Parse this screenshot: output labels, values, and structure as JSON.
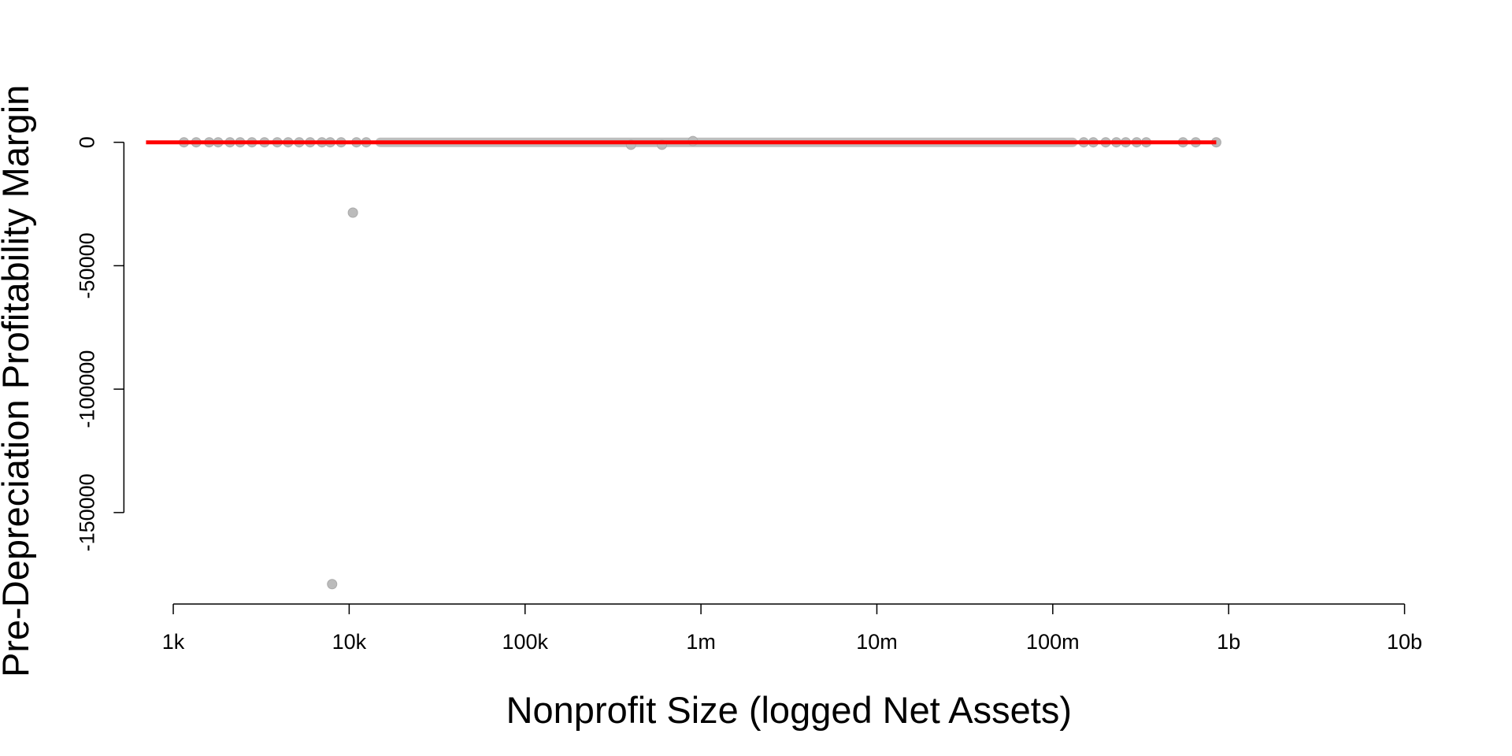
{
  "chart_data": {
    "type": "scatter",
    "title": "",
    "xlabel": "Nonprofit Size (logged Net Assets)",
    "ylabel": "Pre-Depreciation Profitability Margin",
    "x_scale": "log10",
    "x_ticks": [
      {
        "value": 1000,
        "label": "1k"
      },
      {
        "value": 10000,
        "label": "10k"
      },
      {
        "value": 100000,
        "label": "100k"
      },
      {
        "value": 1000000,
        "label": "1m"
      },
      {
        "value": 10000000,
        "label": "10m"
      },
      {
        "value": 100000000,
        "label": "100m"
      },
      {
        "value": 1000000000,
        "label": "1b"
      },
      {
        "value": 10000000000,
        "label": "10b"
      }
    ],
    "y_ticks": [
      {
        "value": 0,
        "label": "0"
      },
      {
        "value": -50000,
        "label": "-50000"
      },
      {
        "value": -100000,
        "label": "-100000"
      },
      {
        "value": -150000,
        "label": "-150000"
      }
    ],
    "points_color": "#bbbbbb",
    "fit_color": "#ff0000",
    "outliers": [
      {
        "x": 10500,
        "y": -28500
      },
      {
        "x": 8000,
        "y": -179000
      },
      {
        "x": 400000,
        "y": -1000
      },
      {
        "x": 600000,
        "y": -1000
      },
      {
        "x": 900000,
        "y": 500
      },
      {
        "x": 850000000,
        "y": 0
      }
    ],
    "dense_band": {
      "x_min": 15000,
      "x_max": 130000000,
      "y": 0
    },
    "scattered_zero_x": [
      1150,
      1350,
      1600,
      1800,
      2100,
      2400,
      2800,
      3300,
      3900,
      4500,
      5200,
      6000,
      7000,
      7800,
      9000,
      11000,
      12500,
      150000000,
      170000000,
      200000000,
      230000000,
      260000000,
      300000000,
      340000000,
      550000000,
      650000000
    ],
    "fit_line": {
      "x": [
        700,
        850000000
      ],
      "y": [
        0,
        0
      ]
    },
    "grid": false,
    "legend": "none"
  }
}
